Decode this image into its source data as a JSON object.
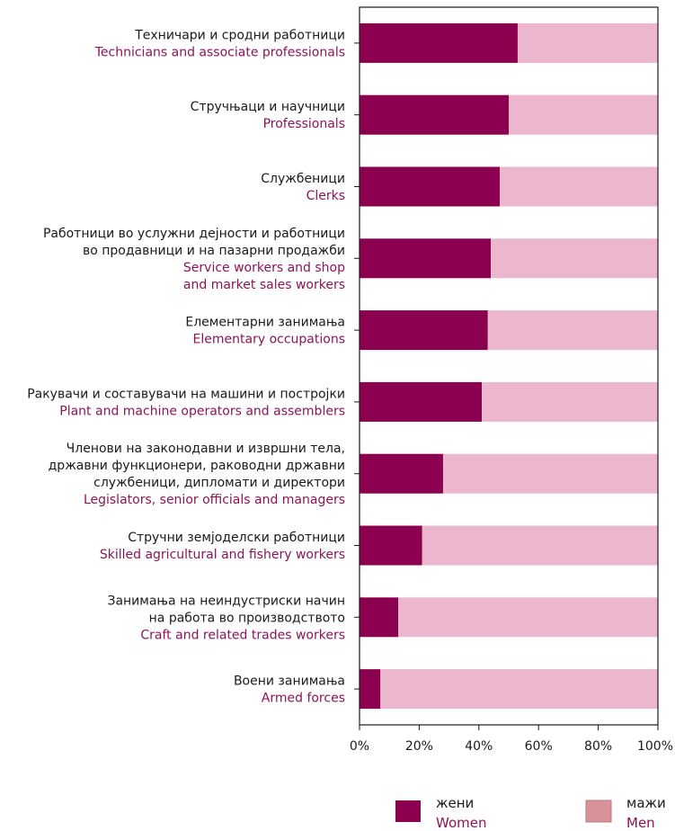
{
  "colors": {
    "women": "#8c0050",
    "men": "#ecb6cf",
    "legend_men": "#d89398",
    "english_text": "#8c1456",
    "text": "#1a1a1a"
  },
  "chart_data": {
    "type": "bar",
    "orientation": "horizontal",
    "stacked": true,
    "percent": true,
    "categories": [
      {
        "mk": [
          "Техничари и сродни работници"
        ],
        "en": [
          "Technicians and associate professionals"
        ]
      },
      {
        "mk": [
          "Стручњаци и научници"
        ],
        "en": [
          "Professionals"
        ]
      },
      {
        "mk": [
          "Службеници"
        ],
        "en": [
          "Clerks"
        ]
      },
      {
        "mk": [
          "Работници во услужни дејности и работници",
          "во продавници и на пазарни продажби"
        ],
        "en": [
          "Service workers and shop",
          "and market sales workers"
        ]
      },
      {
        "mk": [
          "Елементарни занимања"
        ],
        "en": [
          "Elementary occupations"
        ]
      },
      {
        "mk": [
          "Ракувачи и составувачи на машини и постројки"
        ],
        "en": [
          "Plant and machine operators and assemblers"
        ]
      },
      {
        "mk": [
          "Членови на законодавни и извршни тела,",
          "државни функционери, раководни државни",
          "службеници, дипломати и директори"
        ],
        "en": [
          "Legislators, senior officials and managers"
        ]
      },
      {
        "mk": [
          "Стручни земјоделски работници"
        ],
        "en": [
          "Skilled agricultural and fishery workers"
        ]
      },
      {
        "mk": [
          "Занимања на неиндустриски начин",
          "на работа во производството"
        ],
        "en": [
          "Craft and related trades workers"
        ]
      },
      {
        "mk": [
          "Воени занимања"
        ],
        "en": [
          "Armed forces"
        ]
      }
    ],
    "series": [
      {
        "name": "жени",
        "name_en": "Women",
        "values": [
          53,
          50,
          47,
          44,
          43,
          41,
          28,
          21,
          13,
          7
        ]
      },
      {
        "name": "мажи",
        "name_en": "Men",
        "values": [
          47,
          50,
          53,
          56,
          57,
          59,
          72,
          79,
          87,
          93
        ]
      }
    ],
    "x_ticks": [
      "0%",
      "20%",
      "40%",
      "60%",
      "80%",
      "100%"
    ],
    "xlim": [
      0,
      100
    ],
    "grid": false,
    "legend_position": "bottom-right"
  }
}
